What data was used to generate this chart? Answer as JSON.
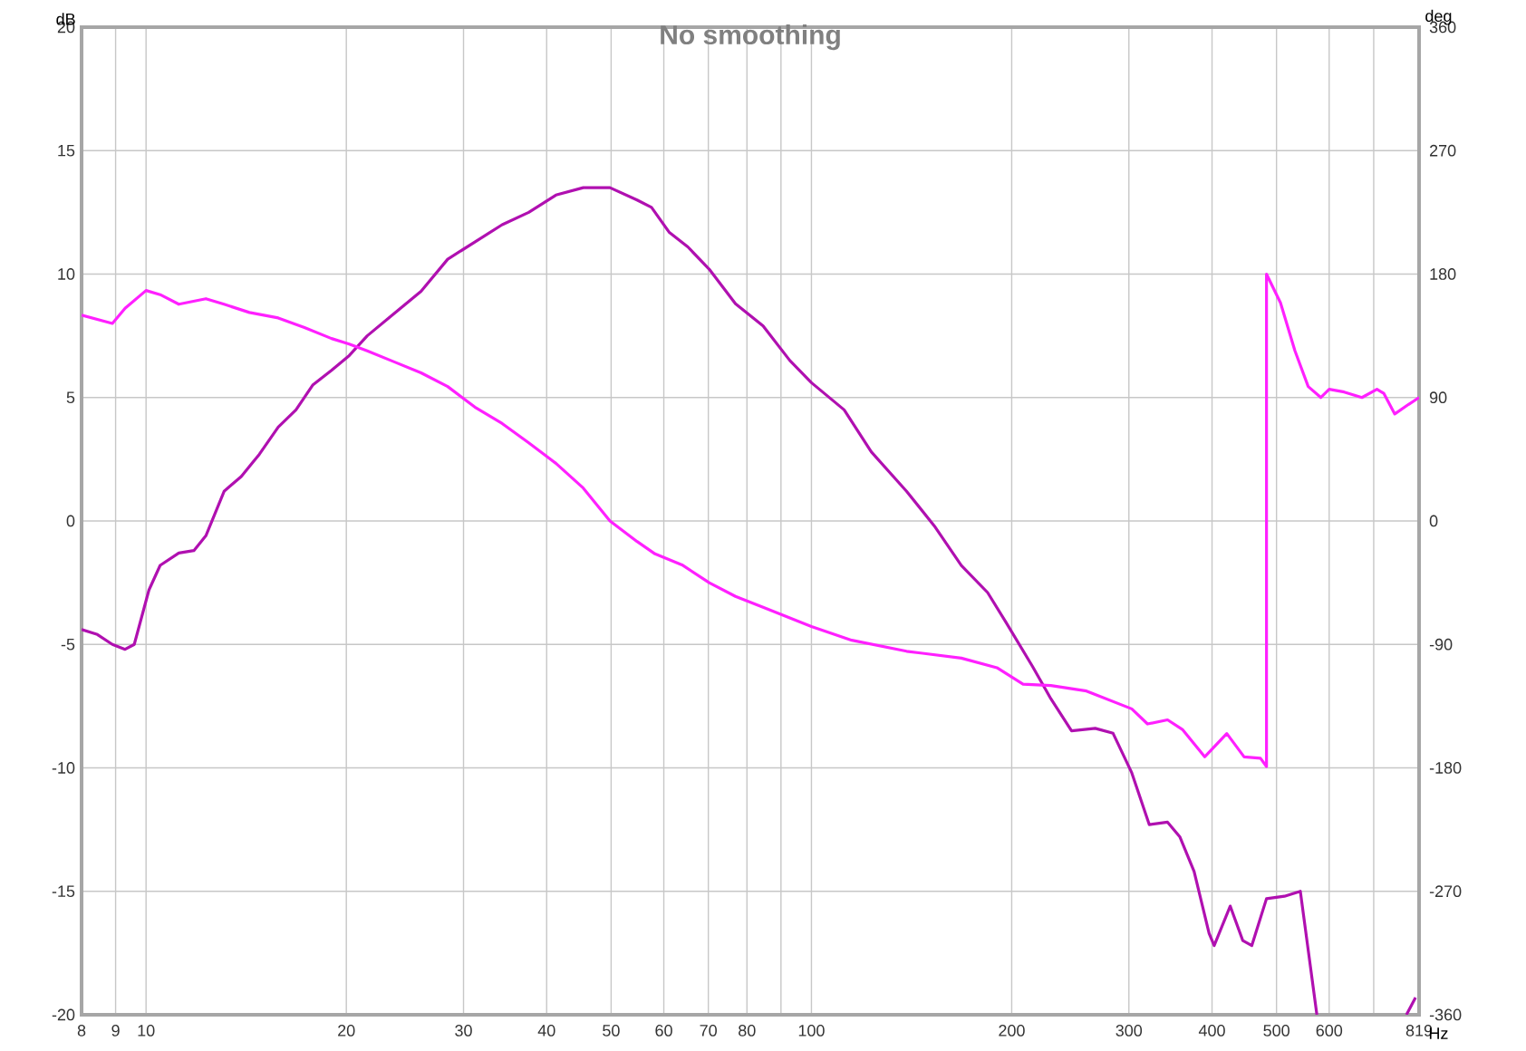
{
  "chart_data": {
    "type": "line",
    "title": "No smoothing",
    "xlabel": "Hz",
    "ylabel": "dB",
    "y2label": "deg",
    "log": "x",
    "grid": true,
    "xlim": [
      8,
      819
    ],
    "xticks": [
      8,
      9,
      10,
      20,
      30,
      40,
      50,
      60,
      70,
      80,
      {
        "value": 90,
        "label": null
      },
      100,
      200,
      300,
      400,
      500,
      600,
      {
        "value": 700,
        "label": null
      },
      819
    ],
    "ylim": [
      -20,
      20
    ],
    "yticks": [
      -20,
      -15,
      -10,
      -5,
      0,
      5,
      10,
      15,
      20
    ],
    "y2lim": [
      -360,
      360
    ],
    "y2ticks": [
      -360,
      -270,
      -180,
      -90,
      0,
      90,
      180,
      270,
      360
    ],
    "series": [
      {
        "color": "#b010b0",
        "x": [
          8,
          8.45,
          8.9,
          9.3,
          9.6,
          10.1,
          10.5,
          11.2,
          11.8,
          12.3,
          13.1,
          13.9,
          14.8,
          15.8,
          16.8,
          17.8,
          19.0,
          20.2,
          21.5,
          23.6,
          25.9,
          28.4,
          31.2,
          34.3,
          37.6,
          41.3,
          45.4,
          49.8,
          54.7,
          57.5,
          61.1,
          65.2,
          70.2,
          76.9,
          84.6,
          92.8,
          100,
          112,
          123,
          139,
          153,
          168,
          184,
          196,
          215,
          229,
          246,
          267,
          284,
          303,
          322,
          343,
          358,
          376,
          396,
          403,
          426,
          445,
          459,
          483,
          514,
          543,
          575,
          700,
          784,
          809
        ],
        "values": [
          -4.4,
          -4.6,
          -5.0,
          -5.2,
          -5.0,
          -2.8,
          -1.8,
          -1.3,
          -1.2,
          -0.6,
          1.2,
          1.8,
          2.7,
          3.8,
          4.5,
          5.5,
          6.1,
          6.7,
          7.5,
          8.4,
          9.3,
          10.6,
          11.3,
          12.0,
          12.5,
          13.2,
          13.5,
          13.5,
          13.0,
          12.7,
          11.7,
          11.1,
          10.2,
          8.8,
          7.9,
          6.5,
          5.6,
          4.5,
          2.8,
          1.2,
          -0.2,
          -1.8,
          -2.9,
          -4.1,
          -5.9,
          -7.2,
          -8.5,
          -8.4,
          -8.6,
          -10.2,
          -12.3,
          -12.2,
          -12.8,
          -14.2,
          -16.7,
          -17.2,
          -15.6,
          -17.0,
          -17.2,
          -15.3,
          -15.2,
          -15.0,
          -20,
          null,
          -20,
          -19.3
        ]
      },
      {
        "color": "#ff20ff",
        "axis": "y2",
        "x": [
          8,
          8.9,
          9.3,
          10.0,
          10.5,
          11.2,
          12.3,
          13.1,
          14.3,
          15.8,
          17.3,
          19.0,
          20.2,
          21.5,
          23.6,
          25.9,
          28.4,
          31.2,
          34.3,
          37.6,
          41.3,
          45.4,
          49.8,
          54.7,
          58.2,
          63.9,
          70.2,
          76.9,
          84.6,
          100,
          115,
          139,
          168,
          190,
          208,
          229,
          259,
          303,
          320,
          343,
          361,
          390,
          421,
          447,
          473,
          483,
          483,
          507,
          533,
          558,
          583,
          600,
          632,
          672,
          708,
          725,
          753,
          790,
          819
        ],
        "values": [
          150,
          144,
          155,
          168,
          165,
          158,
          162,
          158,
          152,
          148,
          141,
          133,
          129,
          124,
          116,
          108,
          98,
          83,
          71,
          57,
          42,
          24,
          0,
          -15,
          -24,
          -32,
          -45,
          -55,
          -63,
          -77,
          -87,
          -95,
          -100,
          -107,
          -119,
          -120,
          -124,
          -137,
          -148,
          -145,
          -152,
          -172,
          -155,
          -172,
          -173,
          -179,
          180,
          159,
          124,
          98,
          90,
          96,
          94,
          90,
          96,
          93,
          78,
          85,
          90
        ]
      }
    ]
  }
}
